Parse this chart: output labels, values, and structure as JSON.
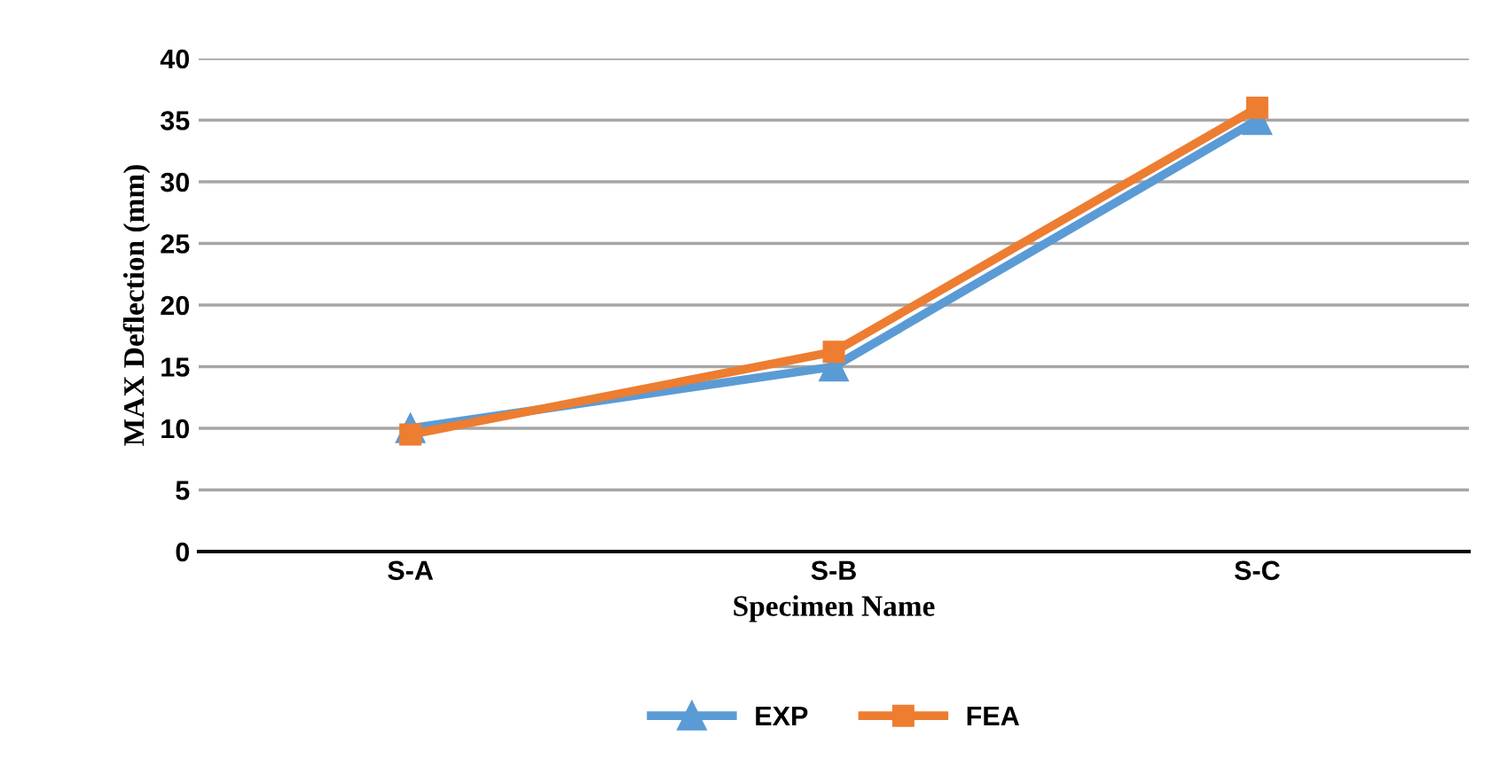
{
  "chart_data": {
    "type": "line",
    "xlabel": "Specimen Name",
    "ylabel": "MAX Deflection (mm)",
    "categories": [
      "S-A",
      "S-B",
      "S-C"
    ],
    "series": [
      {
        "name": "EXP",
        "color": "#5b9bd5",
        "marker": "triangle",
        "values": [
          10,
          15,
          35
        ]
      },
      {
        "name": "FEA",
        "color": "#ed7d31",
        "marker": "square",
        "values": [
          9.5,
          16.2,
          36
        ]
      }
    ],
    "ylim": [
      0,
      40
    ],
    "yticks": [
      0,
      5,
      10,
      15,
      20,
      25,
      30,
      35,
      40
    ],
    "grid": "y",
    "legend": "bottom"
  }
}
